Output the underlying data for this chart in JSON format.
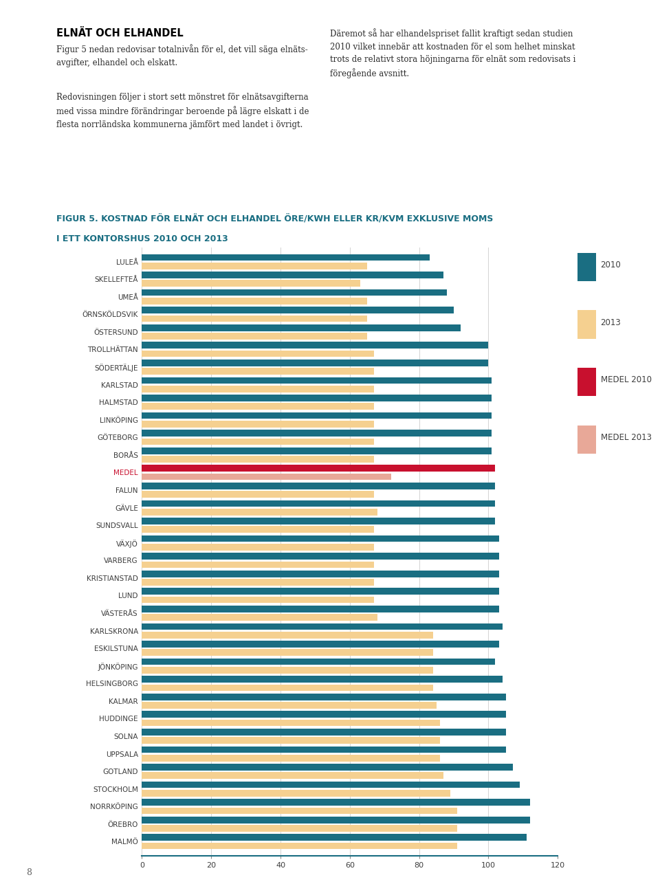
{
  "title_line1": "FIGUR 5. KOSTNAD FÖR ELNÄT OCH ELHANDEL ÖRE/KWH ELLER KR/KVM EXKLUSIVE MOMS",
  "title_line2": "I ETT KONTORSHUS 2010 OCH 2013",
  "header_title": "ELNÄT OCH ELHANDEL",
  "header_text1": "Figur 5 nedan redovisar totalnivån för el, det vill säga elnäts-\navgifter, elhandel och elskatt.",
  "header_text2": "Redovisningen följer i stort sett mönstret för elnätsavgifterna\nmed vissa mindre förändringar beroende på lägre elskatt i de\nflesta norrländska kommunerna jämfört med landet i övrigt.",
  "header_text3": "Däremot så har elhandelspriset fallit kraftigt sedan studien\n2010 vilket innebär att kostnaden för el som helhet minskat\ntrots de relativt stora höjningarna för elnät som redovisats i\nföregående avsnitt.",
  "categories": [
    "LULEÅ",
    "SKELLEFTEÅ",
    "UMEÅ",
    "ÖRNSKÖLDSVIK",
    "ÖSTERSUND",
    "TROLLHÄTTAN",
    "SÖDERTÄLJE",
    "KARLSTAD",
    "HALMSTAD",
    "LINKÖPING",
    "GÖTEBORG",
    "BORÅS",
    "MEDEL",
    "FALUN",
    "GÄVLE",
    "SUNDSVALL",
    "VÄXJÖ",
    "VARBERG",
    "KRISTIANSTAD",
    "LUND",
    "VÄSTERÅS",
    "KARLSKRONA",
    "ESKILSTUNA",
    "JÖNKÖPING",
    "HELSINGBORG",
    "KALMAR",
    "HUDDINGE",
    "SOLNA",
    "UPPSALA",
    "GOTLAND",
    "STOCKHOLM",
    "NORRKÖPING",
    "ÖREBRO",
    "MALMÖ"
  ],
  "values_2010": [
    83,
    87,
    88,
    90,
    92,
    100,
    100,
    101,
    101,
    101,
    101,
    101,
    102,
    102,
    102,
    102,
    103,
    103,
    103,
    103,
    103,
    104,
    103,
    102,
    104,
    105,
    105,
    105,
    105,
    107,
    109,
    112,
    112,
    111
  ],
  "values_2013": [
    65,
    63,
    65,
    65,
    65,
    67,
    67,
    67,
    67,
    67,
    67,
    67,
    72,
    67,
    68,
    67,
    67,
    67,
    67,
    67,
    68,
    84,
    84,
    84,
    84,
    85,
    86,
    86,
    86,
    87,
    89,
    91,
    91,
    91
  ],
  "color_2010": "#1a6e82",
  "color_2013": "#f5d090",
  "color_medel_2010": "#c8102e",
  "color_medel_2013": "#e8a898",
  "medel_index": 12,
  "xlim": [
    0,
    120
  ],
  "xticks": [
    0,
    20,
    40,
    60,
    80,
    100,
    120
  ],
  "background_color": "#ffffff",
  "text_color": "#3d3d3d",
  "teal_color": "#1a6e82",
  "medel_label_color": "#c8102e",
  "grid_color": "#cccccc",
  "page_number": "8"
}
